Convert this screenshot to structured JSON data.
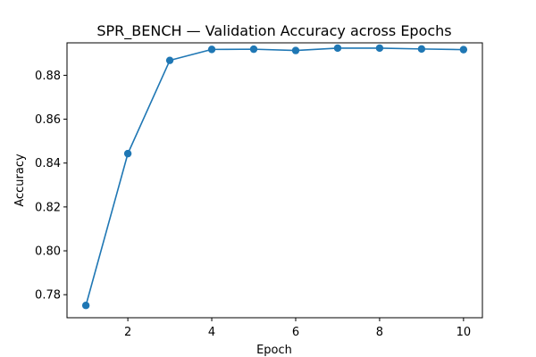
{
  "chart_data": {
    "type": "line",
    "title": "SPR_BENCH — Validation Accuracy across Epochs",
    "xlabel": "Epoch",
    "ylabel": "Accuracy",
    "xlim": [
      0.55,
      10.45
    ],
    "ylim": [
      0.7695,
      0.8948
    ],
    "xticks": [
      2,
      4,
      6,
      8,
      10
    ],
    "yticks": [
      0.78,
      0.8,
      0.82,
      0.84,
      0.86,
      0.88
    ],
    "ytick_labels": [
      "0.78",
      "0.80",
      "0.82",
      "0.84",
      "0.86",
      "0.88"
    ],
    "grid": false,
    "series": [
      {
        "x": [
          1,
          2,
          3,
          4,
          5,
          6,
          7,
          8,
          9,
          10
        ],
        "values": [
          0.7751,
          0.8443,
          0.8868,
          0.8918,
          0.8919,
          0.8913,
          0.8924,
          0.8924,
          0.892,
          0.8917
        ],
        "color": "#1f77b4"
      }
    ]
  }
}
